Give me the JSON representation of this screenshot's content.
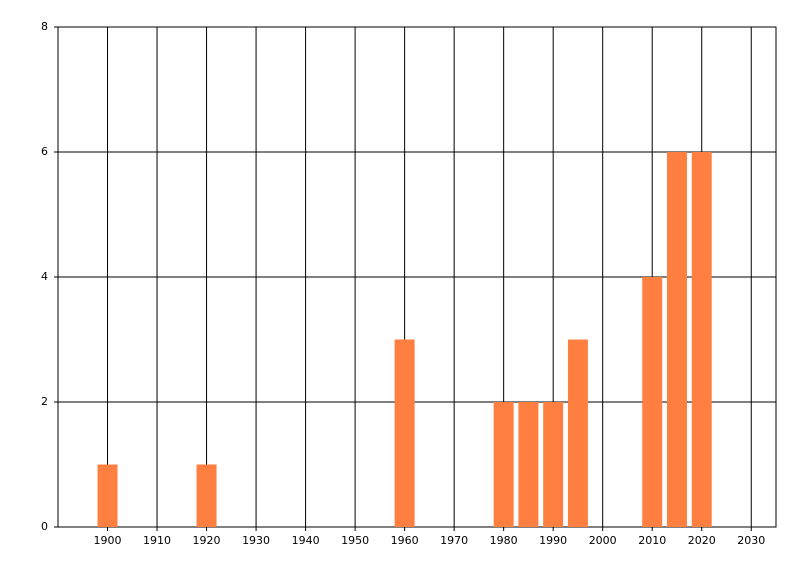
{
  "chart_data": {
    "type": "bar",
    "x": [
      1900,
      1920,
      1960,
      1980,
      1985,
      1990,
      1995,
      2010,
      2015,
      2020
    ],
    "values": [
      1,
      1,
      3,
      2,
      2,
      2,
      3,
      4,
      6,
      6
    ],
    "color": "#ff7f40",
    "xlim": [
      1890,
      2035
    ],
    "xticks": [
      1900,
      1910,
      1920,
      1930,
      1940,
      1950,
      1960,
      1970,
      1980,
      1990,
      2000,
      2010,
      2020,
      2030
    ],
    "ylim": [
      0,
      8
    ],
    "yticks": [
      0,
      2,
      4,
      6,
      8
    ],
    "grid": true
  }
}
